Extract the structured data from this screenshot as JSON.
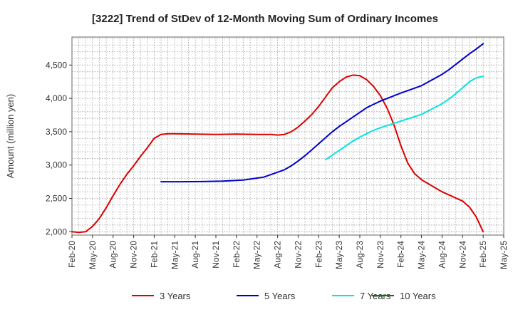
{
  "chart_data": {
    "type": "line",
    "title": "[3222]  Trend of StDev of 12-Month Moving Sum of Ordinary Incomes",
    "xlabel": "",
    "ylabel": "Amount (million yen)",
    "ylim": [
      1950,
      4920
    ],
    "yticks": [
      2000,
      2500,
      3000,
      3500,
      4000,
      4500
    ],
    "ytick_labels": [
      "2,000",
      "2,500",
      "3,000",
      "3,500",
      "4,000",
      "4,500"
    ],
    "xticks": [
      "Feb-20",
      "May-20",
      "Aug-20",
      "Nov-20",
      "Feb-21",
      "May-21",
      "Aug-21",
      "Nov-21",
      "Feb-22",
      "May-22",
      "Aug-22",
      "Nov-22",
      "Feb-23",
      "May-23",
      "Aug-23",
      "Nov-23",
      "Feb-24",
      "May-24",
      "Aug-24",
      "Nov-24",
      "Feb-25",
      "May-25"
    ],
    "grid": true,
    "legend_position": "bottom",
    "series": [
      {
        "name": "3 Years",
        "color": "#dd0000",
        "x": [
          "Feb-20",
          "Mar-20",
          "Apr-20",
          "May-20",
          "Jun-20",
          "Jul-20",
          "Aug-20",
          "Sep-20",
          "Oct-20",
          "Nov-20",
          "Dec-20",
          "Jan-21",
          "Feb-21",
          "Mar-21",
          "Apr-21",
          "May-21",
          "Aug-21",
          "Nov-21",
          "Feb-22",
          "May-22",
          "Jul-22",
          "Aug-22",
          "Sep-22",
          "Oct-22",
          "Nov-22",
          "Dec-22",
          "Jan-23",
          "Feb-23",
          "Mar-23",
          "Apr-23",
          "May-23",
          "Jun-23",
          "Jul-23",
          "Aug-23",
          "Sep-23",
          "Oct-23",
          "Nov-23",
          "Dec-23",
          "Jan-24",
          "Feb-24",
          "Mar-24",
          "Apr-24",
          "May-24",
          "Aug-24",
          "Nov-24",
          "Dec-24",
          "Jan-25",
          "Feb-25"
        ],
        "values": [
          2000,
          1990,
          2000,
          2080,
          2200,
          2360,
          2540,
          2710,
          2860,
          2990,
          3130,
          3260,
          3400,
          3460,
          3470,
          3470,
          3465,
          3460,
          3465,
          3460,
          3460,
          3450,
          3460,
          3500,
          3570,
          3660,
          3760,
          3880,
          4020,
          4160,
          4250,
          4320,
          4350,
          4340,
          4280,
          4180,
          4040,
          3850,
          3600,
          3290,
          3030,
          2870,
          2780,
          2600,
          2460,
          2370,
          2220,
          2000
        ]
      },
      {
        "name": "5 Years",
        "color": "#0000cc",
        "x": [
          "Mar-21",
          "Jun-21",
          "Sep-21",
          "Dec-21",
          "Mar-22",
          "Jun-22",
          "Sep-22",
          "Oct-22",
          "Nov-22",
          "Dec-22",
          "Jan-23",
          "Feb-23",
          "Mar-23",
          "Apr-23",
          "May-23",
          "Jun-23",
          "Jul-23",
          "Aug-23",
          "Sep-23",
          "Oct-23",
          "Nov-23",
          "Feb-24",
          "May-24",
          "Aug-24",
          "Sep-24",
          "Oct-24",
          "Nov-24",
          "Dec-24",
          "Jan-25",
          "Feb-25"
        ],
        "values": [
          2750,
          2750,
          2752,
          2760,
          2775,
          2820,
          2930,
          2990,
          3060,
          3140,
          3230,
          3320,
          3410,
          3500,
          3580,
          3650,
          3720,
          3790,
          3860,
          3910,
          3960,
          4080,
          4190,
          4360,
          4430,
          4510,
          4590,
          4670,
          4740,
          4820
        ]
      },
      {
        "name": "7 Years",
        "color": "#00e5e5",
        "x": [
          "Mar-23",
          "Apr-23",
          "May-23",
          "Jun-23",
          "Jul-23",
          "Aug-23",
          "Sep-23",
          "Oct-23",
          "Nov-23",
          "Feb-24",
          "May-24",
          "Aug-24",
          "Sep-24",
          "Oct-24",
          "Nov-24",
          "Dec-24",
          "Jan-25",
          "Feb-25"
        ],
        "values": [
          3080,
          3150,
          3220,
          3290,
          3360,
          3420,
          3470,
          3520,
          3560,
          3660,
          3760,
          3920,
          3990,
          4070,
          4160,
          4250,
          4310,
          4330
        ]
      },
      {
        "name": "10 Years",
        "color": "#008000",
        "x": [],
        "values": []
      }
    ]
  }
}
